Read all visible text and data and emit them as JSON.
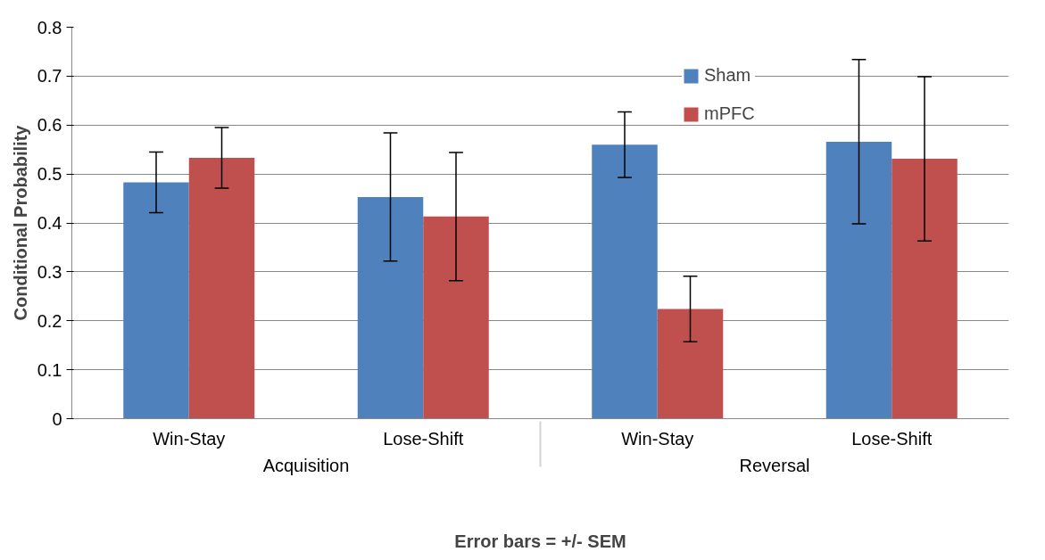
{
  "chart_data": {
    "type": "bar",
    "categories": [
      "Win-Stay",
      "Lose-Shift",
      "Win-Stay",
      "Lose-Shift"
    ],
    "annotations": [
      "Acquisition",
      "Reversal"
    ],
    "xlabel": "Error bars = +/- SEM",
    "ylabel": "Conditional Probability",
    "series": [
      {
        "name": "Sham",
        "color": "#4f81bd",
        "values": [
          0.483,
          0.453,
          0.56,
          0.566
        ],
        "errors": [
          0.062,
          0.131,
          0.067,
          0.168
        ]
      },
      {
        "name": "mPFC",
        "color": "#c0504d",
        "values": [
          0.533,
          0.413,
          0.224,
          0.531
        ],
        "errors": [
          0.062,
          0.131,
          0.067,
          0.168
        ]
      }
    ],
    "ylim": [
      0,
      0.8
    ],
    "yticks": [
      0,
      0.1,
      0.2,
      0.3,
      0.4,
      0.5,
      0.6,
      0.7,
      0.8
    ],
    "grid": "y",
    "legend": "top right"
  }
}
